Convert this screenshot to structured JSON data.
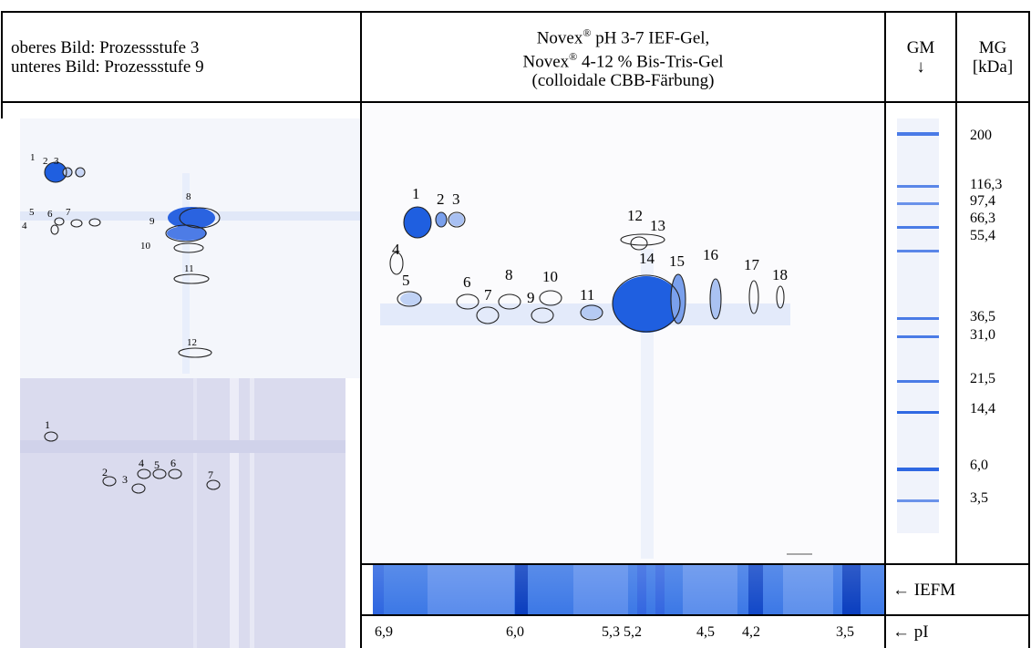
{
  "header": {
    "left_line1": "oberes Bild: Prozessstufe 3",
    "left_line2": "unteres Bild: Prozessstufe 9",
    "center_line1_pre": "Novex",
    "center_line1_post": " pH 3-7 IEF-Gel,",
    "center_line2_pre": "Novex",
    "center_line2_post": " 4-12 % Bis-Tris-Gel",
    "center_line3": "(colloidale CBB-Färbung)",
    "registered_mark": "®",
    "gm_label": "GM",
    "gm_arrow": "↓",
    "mg_label": "MG",
    "mg_unit": "[kDa]"
  },
  "top_left_spots": [
    "1",
    "2",
    "3",
    "4",
    "5",
    "6",
    "7",
    "8",
    "9",
    "10",
    "11",
    "12"
  ],
  "bottom_left_spots": [
    "1",
    "2",
    "3",
    "4",
    "5",
    "6",
    "7"
  ],
  "main_spots": [
    "1",
    "2",
    "3",
    "4",
    "5",
    "6",
    "7",
    "8",
    "9",
    "10",
    "11",
    "12",
    "13",
    "14",
    "15",
    "16",
    "17",
    "18"
  ],
  "marker_weights": [
    "200",
    "116,3",
    "97,4",
    "66,3",
    "55,4",
    "36,5",
    "31,0",
    "21,5",
    "14,4",
    "6,0",
    "3,5"
  ],
  "iefm_label": "← IEFM",
  "pi_label": "← pI",
  "ph_values": [
    "6,9",
    "6,0",
    "5,3 5,2",
    "4,5",
    "4,2",
    "3,5"
  ],
  "colors": {
    "stain": "#1f5fe0",
    "gel_bg": "#f4f6fb",
    "membrane_bg": "#ddddf0"
  }
}
